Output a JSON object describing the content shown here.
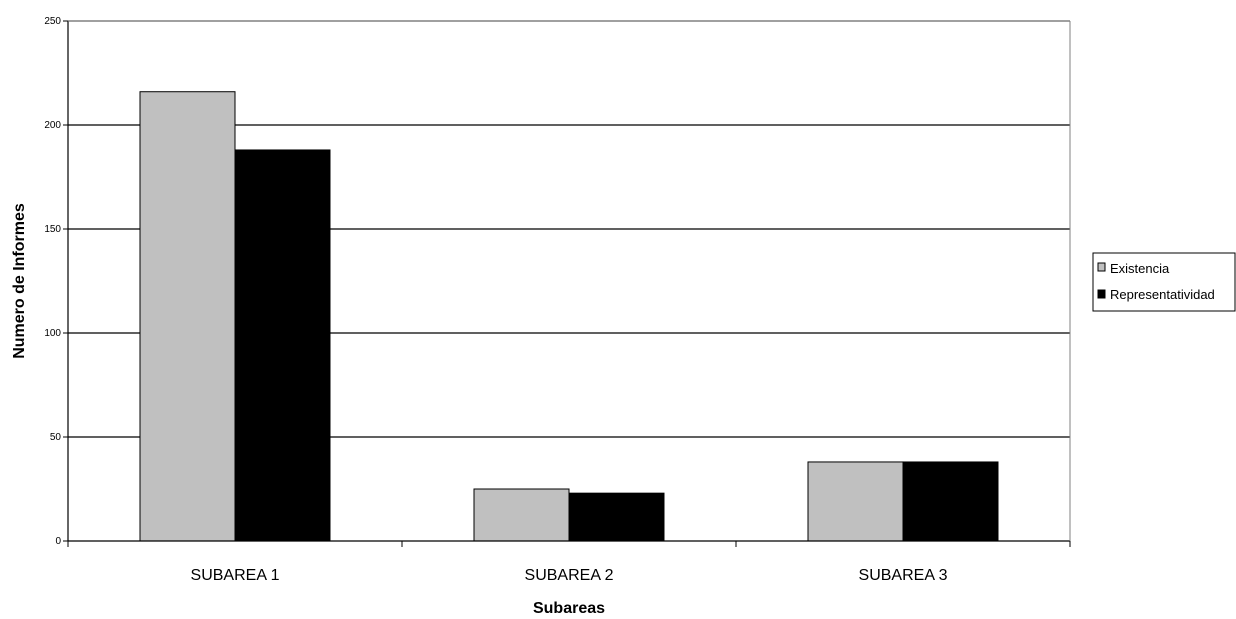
{
  "chart_data": {
    "type": "bar",
    "title": "",
    "xlabel": "Subareas",
    "ylabel": "Numero de Informes",
    "categories": [
      "SUBAREA 1",
      "SUBAREA 2",
      "SUBAREA 3"
    ],
    "series": [
      {
        "name": "Existencia",
        "values": [
          216,
          25,
          38
        ],
        "color": "#c0c0c0"
      },
      {
        "name": "Representatividad",
        "values": [
          188,
          23,
          38
        ],
        "color": "#000000"
      }
    ],
    "ylim": [
      0,
      250
    ],
    "yticks": [
      0,
      50,
      100,
      150,
      200,
      250
    ],
    "grid": true,
    "legend": "right"
  }
}
